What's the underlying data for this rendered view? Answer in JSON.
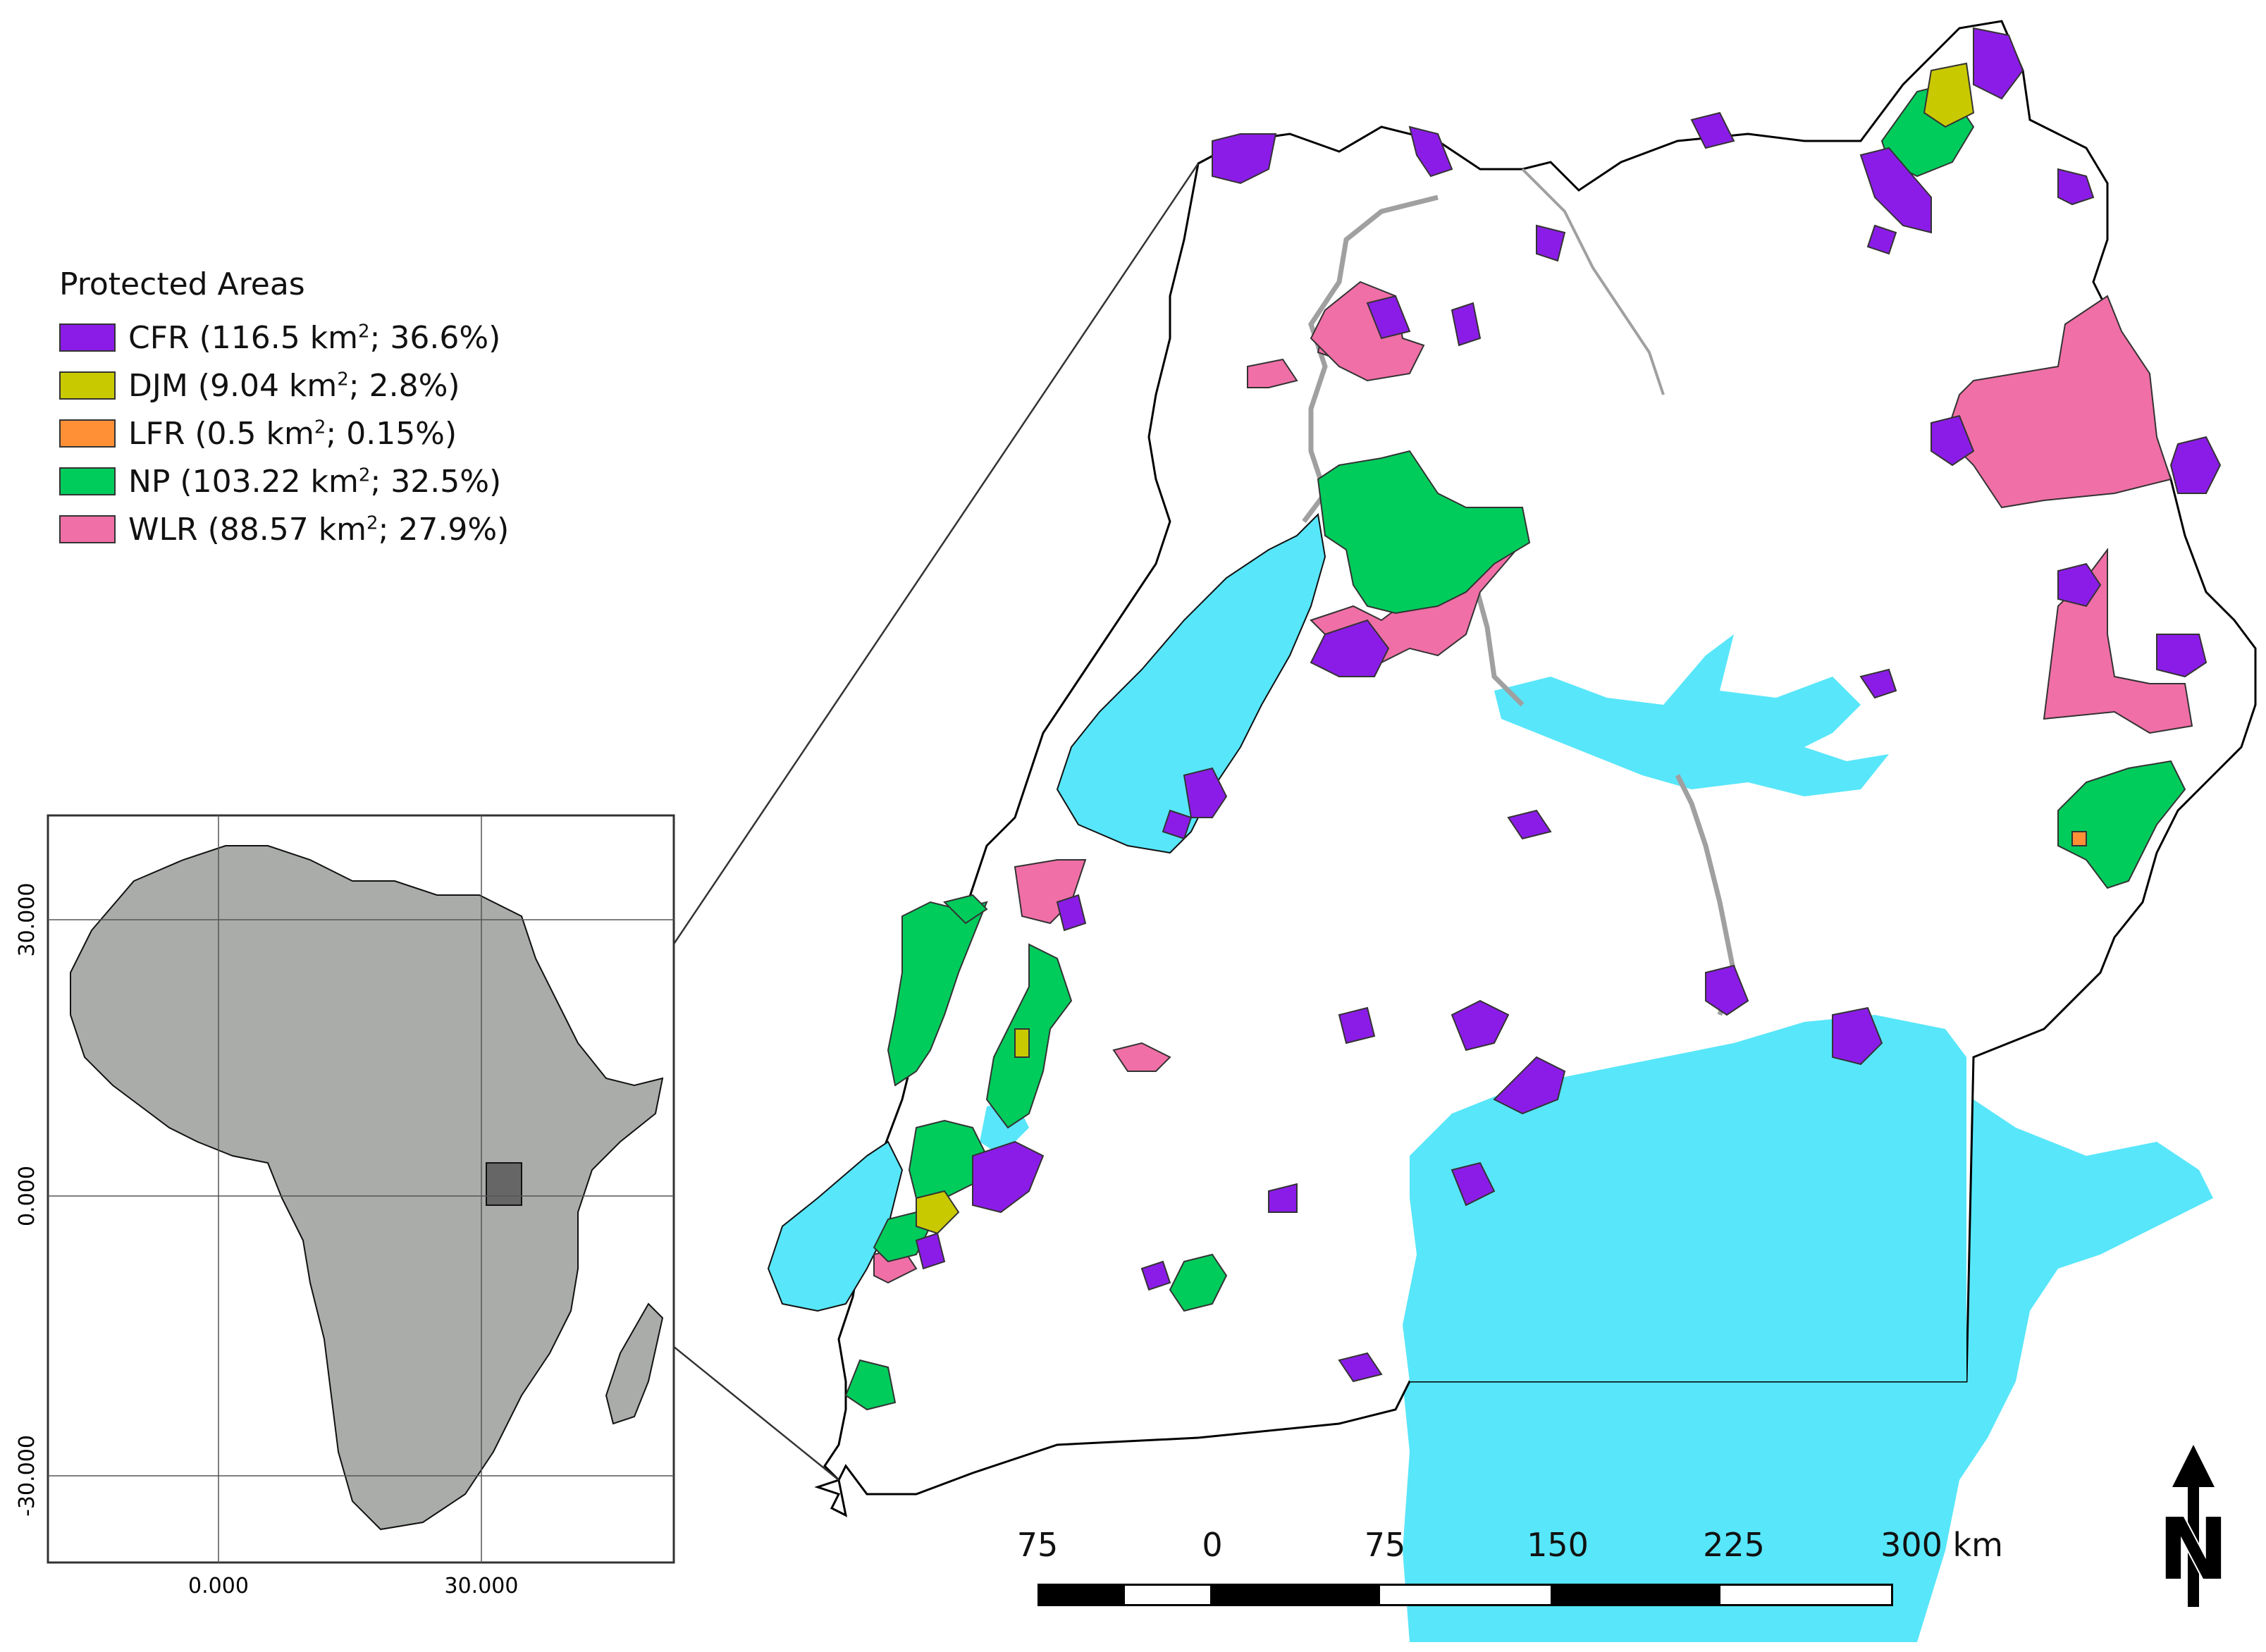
{
  "legend": {
    "title": "Protected Areas",
    "items": [
      {
        "code": "CFR",
        "pre": "CFR (116.5 km",
        "post": "; 36.6%)",
        "sup": "2",
        "color": "#8b1ce8"
      },
      {
        "code": "DJM",
        "pre": "DJM (9.04  km",
        "post": "; 2.8%)",
        "sup": "2",
        "color": "#c9c900"
      },
      {
        "code": "LFR",
        "pre": "LFR (0.5 km",
        "post": "; 0.15%)",
        "sup": "2",
        "color": "#ff9036"
      },
      {
        "code": "NP",
        "pre": "NP (103.22 km",
        "post": "; 32.5%)",
        "sup": "2",
        "color": "#00cc5c"
      },
      {
        "code": "WLR",
        "pre": "WLR (88.57 km",
        "post": "; 27.9%)",
        "sup": "2",
        "color": "#f06fa6"
      }
    ]
  },
  "inset": {
    "x_ticks": [
      "0.000",
      "30.000"
    ],
    "y_ticks": [
      "30.000",
      "0.000",
      "-30.000"
    ]
  },
  "scale_bar": {
    "labels": [
      "75",
      "0",
      "75",
      "150",
      "225",
      "300 km"
    ],
    "unit": "km"
  },
  "north_arrow": {
    "label": "N",
    "icon": "north-arrow-icon"
  },
  "colors": {
    "water": "#58e6fa",
    "land_inset": "#a9aca9",
    "uganda_inset": "#666666",
    "river": "#a0a0a0",
    "border": "#000000"
  }
}
